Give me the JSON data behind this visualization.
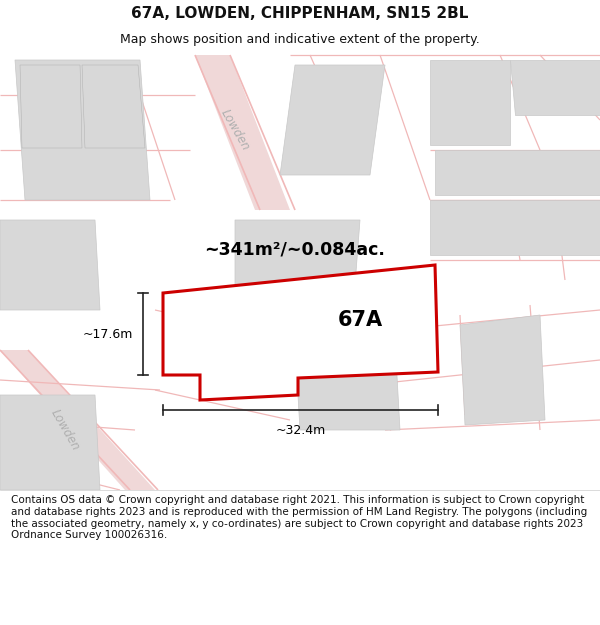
{
  "title": "67A, LOWDEN, CHIPPENHAM, SN15 2BL",
  "subtitle": "Map shows position and indicative extent of the property.",
  "footer": "Contains OS data © Crown copyright and database right 2021. This information is subject to Crown copyright and database rights 2023 and is reproduced with the permission of HM Land Registry. The polygons (including the associated geometry, namely x, y co-ordinates) are subject to Crown copyright and database rights 2023 Ordnance Survey 100026316.",
  "area_label": "~341m²/~0.084ac.",
  "width_label": "~32.4m",
  "height_label": "~17.6m",
  "property_label": "67A",
  "map_bg": "#f2f2f2",
  "property_fill": "#ffffff",
  "property_stroke": "#cc0000",
  "building_fill": "#d8d8d8",
  "building_stroke": "#c8c8c8",
  "road_stroke": "#f0b8b8",
  "plot_stroke": "#f0b8b8",
  "road_label_color": "#b0b0b0",
  "dim_color": "#222222",
  "title_fontsize": 11,
  "subtitle_fontsize": 9,
  "footer_fontsize": 7.5
}
